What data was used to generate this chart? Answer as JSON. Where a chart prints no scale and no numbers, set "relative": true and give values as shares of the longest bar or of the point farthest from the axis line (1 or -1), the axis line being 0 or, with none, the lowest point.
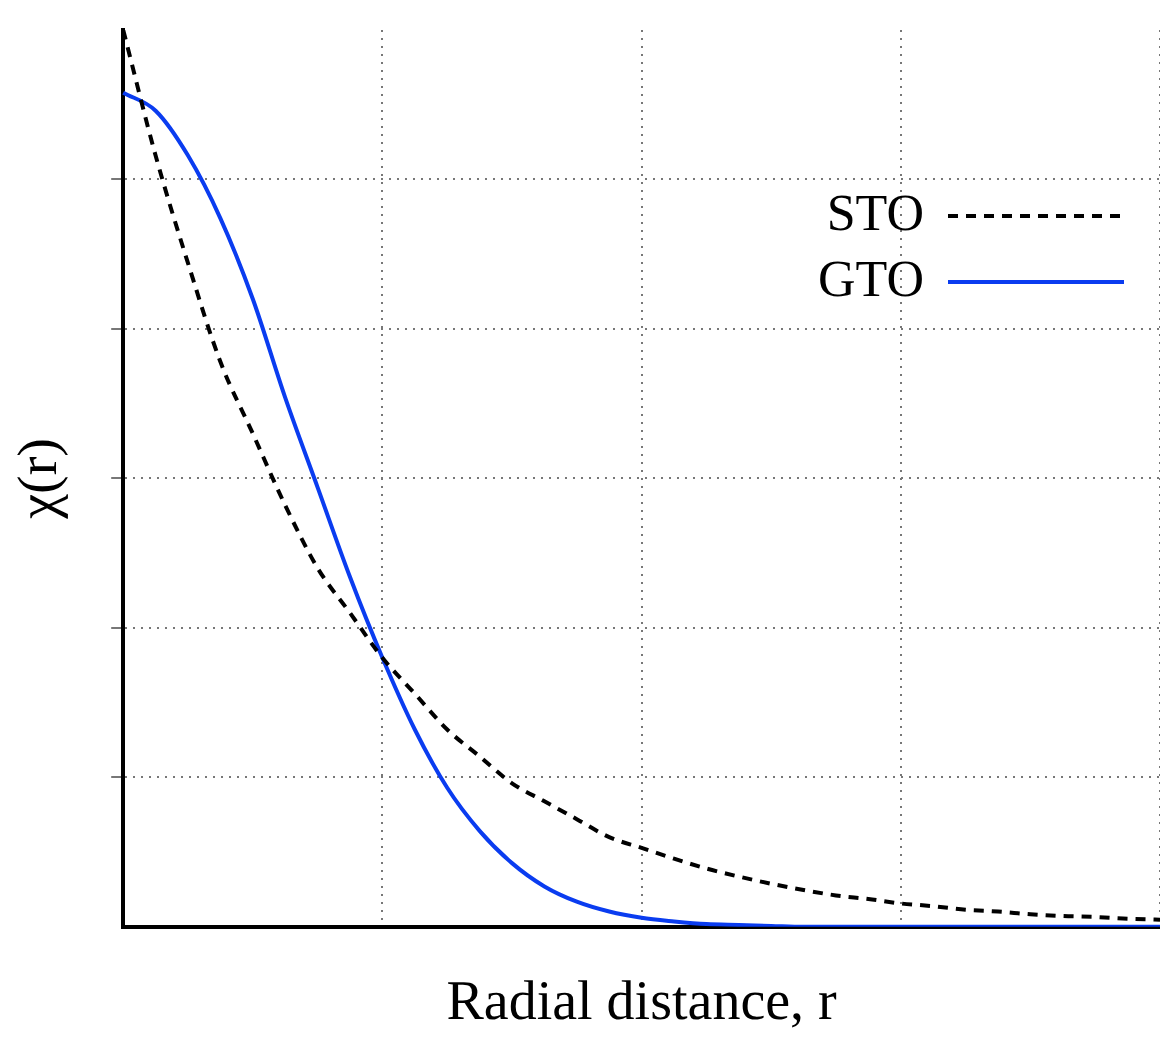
{
  "chart_data": {
    "type": "line",
    "xlabel": "Radial distance, r",
    "ylabel": "χ(r)",
    "relative": true,
    "grid": true,
    "legend": "top right",
    "tick_labels": false,
    "marker": "none",
    "categories": [
      null,
      null,
      null,
      null,
      null,
      null,
      null,
      null,
      null,
      null,
      null,
      null,
      null,
      null,
      null,
      null,
      null,
      null,
      null,
      null,
      null,
      null,
      null,
      null,
      null,
      null,
      null,
      null,
      null,
      null,
      null,
      null,
      null
    ],
    "series": [
      {
        "name": "STO",
        "color": "#000000",
        "line_style": "dashed",
        "values": [
          1.0,
          0.86,
          0.74,
          0.63,
          0.55,
          0.47,
          0.4,
          0.35,
          0.3,
          0.26,
          0.22,
          0.19,
          0.16,
          0.14,
          0.12,
          0.1,
          0.088,
          0.076,
          0.065,
          0.056,
          0.048,
          0.041,
          0.035,
          0.031,
          0.026,
          0.023,
          0.019,
          0.017,
          0.014,
          0.012,
          0.011,
          0.009,
          0.008
        ]
      },
      {
        "name": "GTO",
        "color": "#0a3cf0",
        "line_style": "solid",
        "values": [
          0.93,
          0.91,
          0.86,
          0.79,
          0.7,
          0.59,
          0.49,
          0.39,
          0.3,
          0.22,
          0.155,
          0.107,
          0.071,
          0.045,
          0.028,
          0.017,
          0.01,
          0.006,
          0.003,
          0.002,
          0.001,
          0,
          0,
          0,
          0,
          0,
          0,
          0,
          0,
          0,
          0,
          0,
          0
        ]
      }
    ]
  }
}
